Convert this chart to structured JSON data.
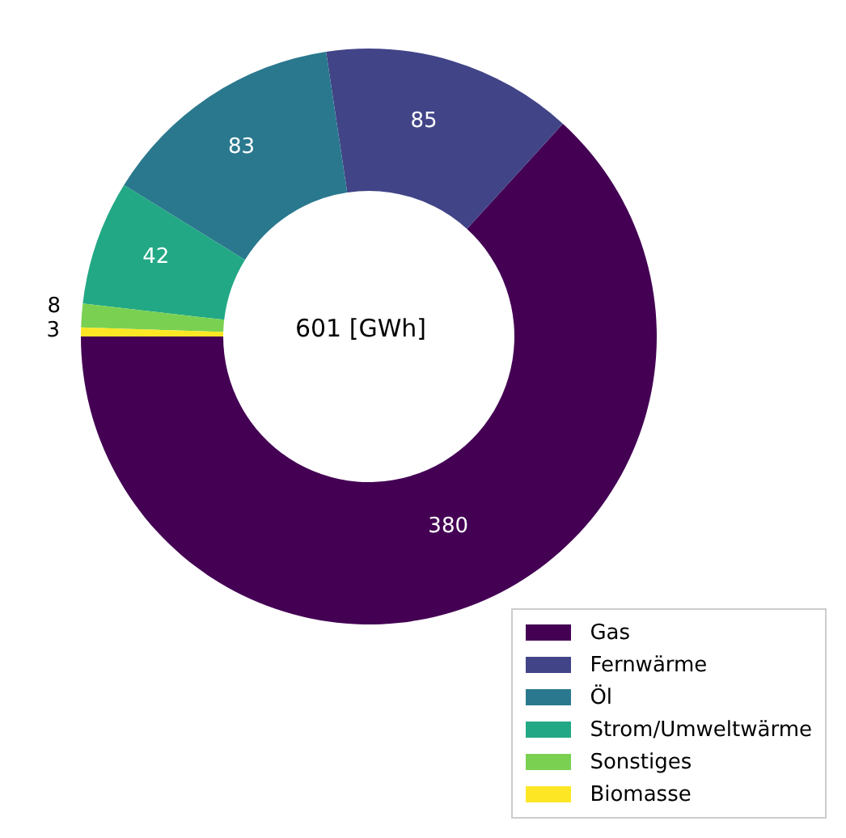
{
  "chart_data": {
    "type": "donut",
    "categories": [
      "Gas",
      "Fernwärme",
      "Öl",
      "Strom/Umweltwärme",
      "Sonstiges",
      "Biomasse"
    ],
    "values": [
      380,
      85,
      83,
      42,
      8,
      3
    ],
    "colors": [
      "#440154",
      "#414487",
      "#2a788e",
      "#22a884",
      "#7ad151",
      "#fde725"
    ],
    "data_labels": true,
    "legend": "bottom right",
    "annotations": [
      "601 [GWh]"
    ]
  }
}
